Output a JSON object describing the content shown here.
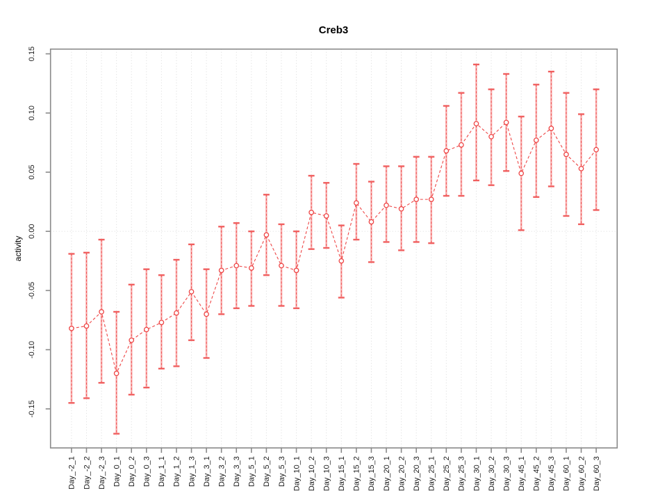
{
  "chart_data": {
    "type": "scatter",
    "title": "Creb3",
    "ylabel": "activity",
    "xlabel": "",
    "legend": "none",
    "grid": "dotted vertical gridline per category; dotted horizontal line at 0",
    "ylim": [
      -0.183,
      0.154
    ],
    "yticks": [
      -0.15,
      -0.1,
      -0.05,
      0.0,
      0.05,
      0.1,
      0.15
    ],
    "ytick_labels": [
      "-0.15",
      "-0.10",
      "-0.05",
      "0.00",
      "0.05",
      "0.10",
      "0.15"
    ],
    "categories": [
      "Day_-2_1",
      "Day_-2_2",
      "Day_-2_3",
      "Day_0_1",
      "Day_0_2",
      "Day_0_3",
      "Day_1_1",
      "Day_1_2",
      "Day_1_3",
      "Day_3_1",
      "Day_3_2",
      "Day_3_3",
      "Day_5_1",
      "Day_5_2",
      "Day_5_3",
      "Day_10_1",
      "Day_10_2",
      "Day_10_3",
      "Day_15_1",
      "Day_15_2",
      "Day_15_3",
      "Day_20_1",
      "Day_20_2",
      "Day_20_3",
      "Day_25_1",
      "Day_25_2",
      "Day_25_3",
      "Day_30_1",
      "Day_30_2",
      "Day_30_3",
      "Day_45_1",
      "Day_45_2",
      "Day_45_3",
      "Day_60_1",
      "Day_60_2",
      "Day_60_3"
    ],
    "series": [
      {
        "name": "activity",
        "marker": "open-circle",
        "line_style": "dashed",
        "means": [
          -0.082,
          -0.08,
          -0.068,
          -0.12,
          -0.092,
          -0.083,
          -0.077,
          -0.069,
          -0.051,
          -0.07,
          -0.033,
          -0.029,
          -0.031,
          -0.003,
          -0.029,
          -0.033,
          0.016,
          0.013,
          -0.025,
          0.024,
          0.008,
          0.022,
          0.019,
          0.027,
          0.027,
          0.068,
          0.073,
          0.091,
          0.08,
          0.092,
          0.049,
          0.077,
          0.087,
          0.065,
          0.053,
          0.069
        ],
        "lower": [
          -0.145,
          -0.141,
          -0.128,
          -0.171,
          -0.138,
          -0.132,
          -0.116,
          -0.114,
          -0.092,
          -0.107,
          -0.07,
          -0.065,
          -0.063,
          -0.037,
          -0.063,
          -0.065,
          -0.015,
          -0.014,
          -0.056,
          -0.007,
          -0.026,
          -0.009,
          -0.016,
          -0.009,
          -0.01,
          0.03,
          0.03,
          0.043,
          0.039,
          0.051,
          0.001,
          0.029,
          0.038,
          0.013,
          0.006,
          0.018
        ],
        "upper": [
          -0.019,
          -0.018,
          -0.007,
          -0.068,
          -0.045,
          -0.032,
          -0.037,
          -0.024,
          -0.011,
          -0.032,
          0.004,
          0.007,
          0.0,
          0.031,
          0.006,
          0.0,
          0.047,
          0.041,
          0.005,
          0.057,
          0.042,
          0.055,
          0.055,
          0.063,
          0.063,
          0.106,
          0.117,
          0.141,
          0.12,
          0.133,
          0.097,
          0.124,
          0.135,
          0.117,
          0.099,
          0.12
        ]
      }
    ]
  },
  "colors": {
    "point": "#ee4545",
    "series_line": "#ee4545",
    "error_bar_light": "#f9b1b1",
    "error_bar_dash": "#ee4545",
    "error_bar_cap": "#f05f5f",
    "grid": "#d9d9d9",
    "axis": "#898989",
    "tick_text": "#1a1a1a",
    "background": "#ffffff"
  }
}
